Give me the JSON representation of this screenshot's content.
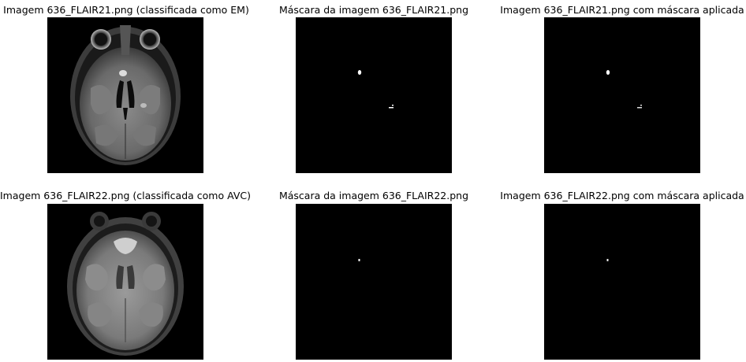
{
  "panels": [
    {
      "title": "Imagem 636_FLAIR21.png (classificada como EM)"
    },
    {
      "title": "Máscara da imagem 636_FLAIR21.png"
    },
    {
      "title": "Imagem 636_FLAIR21.png com máscara aplicada"
    },
    {
      "title": "Imagem 636_FLAIR22.png (classificada como AVC)"
    },
    {
      "title": "Máscara da imagem 636_FLAIR22.png"
    },
    {
      "title": "Imagem 636_FLAIR22.png com máscara aplicada"
    }
  ],
  "colors": {
    "background": "#ffffff",
    "image_bg": "#000000",
    "lesion": "#ffffff"
  }
}
